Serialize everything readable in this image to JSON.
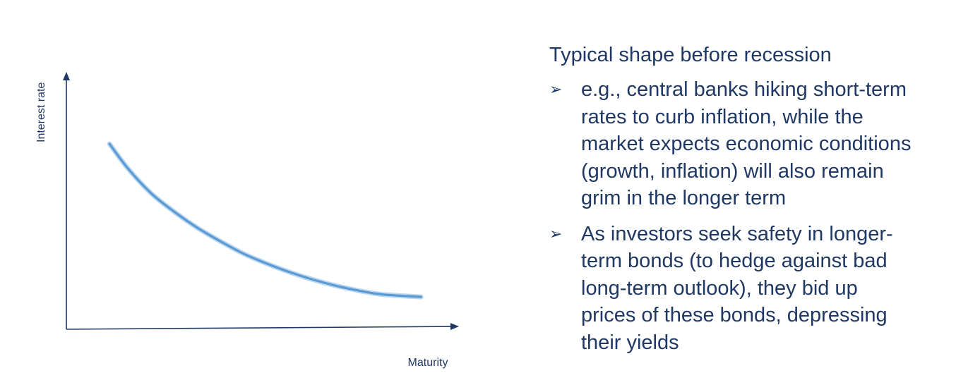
{
  "chart_data": {
    "type": "line",
    "title": "",
    "xlabel": "Maturity",
    "ylabel": "Interest rate",
    "xlim": [
      0,
      10
    ],
    "ylim": [
      0,
      10
    ],
    "grid": false,
    "series": [
      {
        "color": "#5b9bd5",
        "x": [
          1.12,
          1.6,
          2.2,
          2.8,
          3.4,
          4.0,
          4.6,
          5.2,
          5.8,
          6.4,
          7.0,
          7.6,
          8.2,
          9.2
        ],
        "y": [
          7.51,
          6.51,
          5.51,
          4.76,
          4.11,
          3.56,
          3.06,
          2.66,
          2.31,
          2.01,
          1.76,
          1.56,
          1.41,
          1.31
        ]
      }
    ]
  },
  "panel": {
    "heading": "Typical shape before recession",
    "bullets": [
      {
        "lines": [
          "e.g., central banks hiking short-term",
          "rates to curb inflation, while the",
          "market expects economic conditions",
          "(growth, inflation) will also remain",
          "grim in the longer term"
        ]
      },
      {
        "lines": [
          "As investors seek safety in longer-",
          "term bonds (to hedge against bad",
          "long-term outlook), they bid up",
          "prices of these bonds, depressing",
          "their yields"
        ]
      }
    ],
    "bullet_glyph": "➢"
  }
}
